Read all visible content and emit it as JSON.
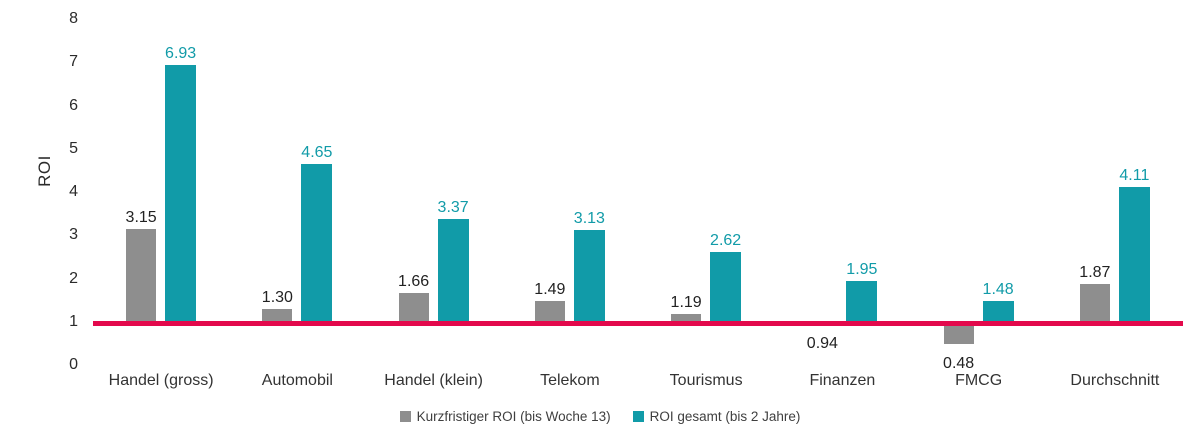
{
  "colors": {
    "series_short": "#8E8E8E",
    "series_total": "#119BA8",
    "baseline_line": "#E3094C",
    "axis_text": "#2B2B2B",
    "category_text": "#333333",
    "short_label_text": "#222222"
  },
  "chart_data": {
    "type": "bar",
    "title": "",
    "xlabel": "",
    "ylabel": "ROI",
    "ylim": [
      0,
      8
    ],
    "yticks": [
      0,
      1,
      2,
      3,
      4,
      5,
      6,
      7,
      8
    ],
    "grid": false,
    "bar_base": 1,
    "baseline_marker": 1,
    "legend_position": "bottom",
    "categories": [
      "Handel (gross)",
      "Automobil",
      "Handel (klein)",
      "Telekom",
      "Tourismus",
      "Finanzen",
      "FMCG",
      "Durchschnitt"
    ],
    "series": [
      {
        "name": "Kurzfristiger ROI (bis Woche 13)",
        "color": "#8E8E8E",
        "label_color": "#222222",
        "values": [
          3.15,
          1.3,
          1.66,
          1.49,
          1.19,
          0.94,
          0.48,
          1.87
        ],
        "labels": [
          "3.15",
          "1.30",
          "1.66",
          "1.49",
          "1.19",
          "0.94",
          "0.48",
          "1.87"
        ]
      },
      {
        "name": "ROI gesamt (bis 2 Jahre)",
        "color": "#119BA8",
        "label_color": "#119BA8",
        "values": [
          6.93,
          4.65,
          3.37,
          3.13,
          2.62,
          1.95,
          1.48,
          4.11
        ],
        "labels": [
          "6.93",
          "4.65",
          "3.37",
          "3.13",
          "2.62",
          "1.95",
          "1.48",
          "4.11"
        ]
      }
    ]
  }
}
